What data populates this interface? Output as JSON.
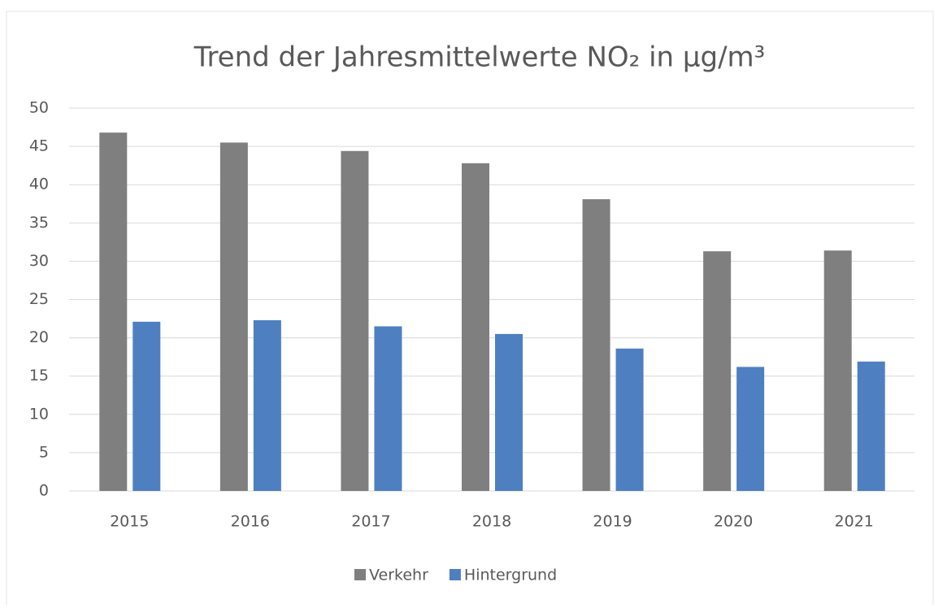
{
  "chart_data": {
    "type": "bar",
    "title": "Trend der Jahresmittelwerte NO₂ in µg/m³",
    "categories": [
      "2015",
      "2016",
      "2017",
      "2018",
      "2019",
      "2020",
      "2021"
    ],
    "series": [
      {
        "name": "Verkehr",
        "color": "#7f7f7f",
        "values": [
          46.8,
          45.5,
          44.4,
          42.8,
          38.1,
          31.3,
          31.4
        ]
      },
      {
        "name": "Hintergrund",
        "color": "#4e7fc1",
        "values": [
          22.1,
          22.3,
          21.5,
          20.5,
          18.6,
          16.2,
          16.9
        ]
      }
    ],
    "ylim": [
      0,
      50
    ],
    "yticks": [
      0,
      5,
      10,
      15,
      20,
      25,
      30,
      35,
      40,
      45,
      50
    ],
    "grid": true,
    "legend": "bottom"
  }
}
